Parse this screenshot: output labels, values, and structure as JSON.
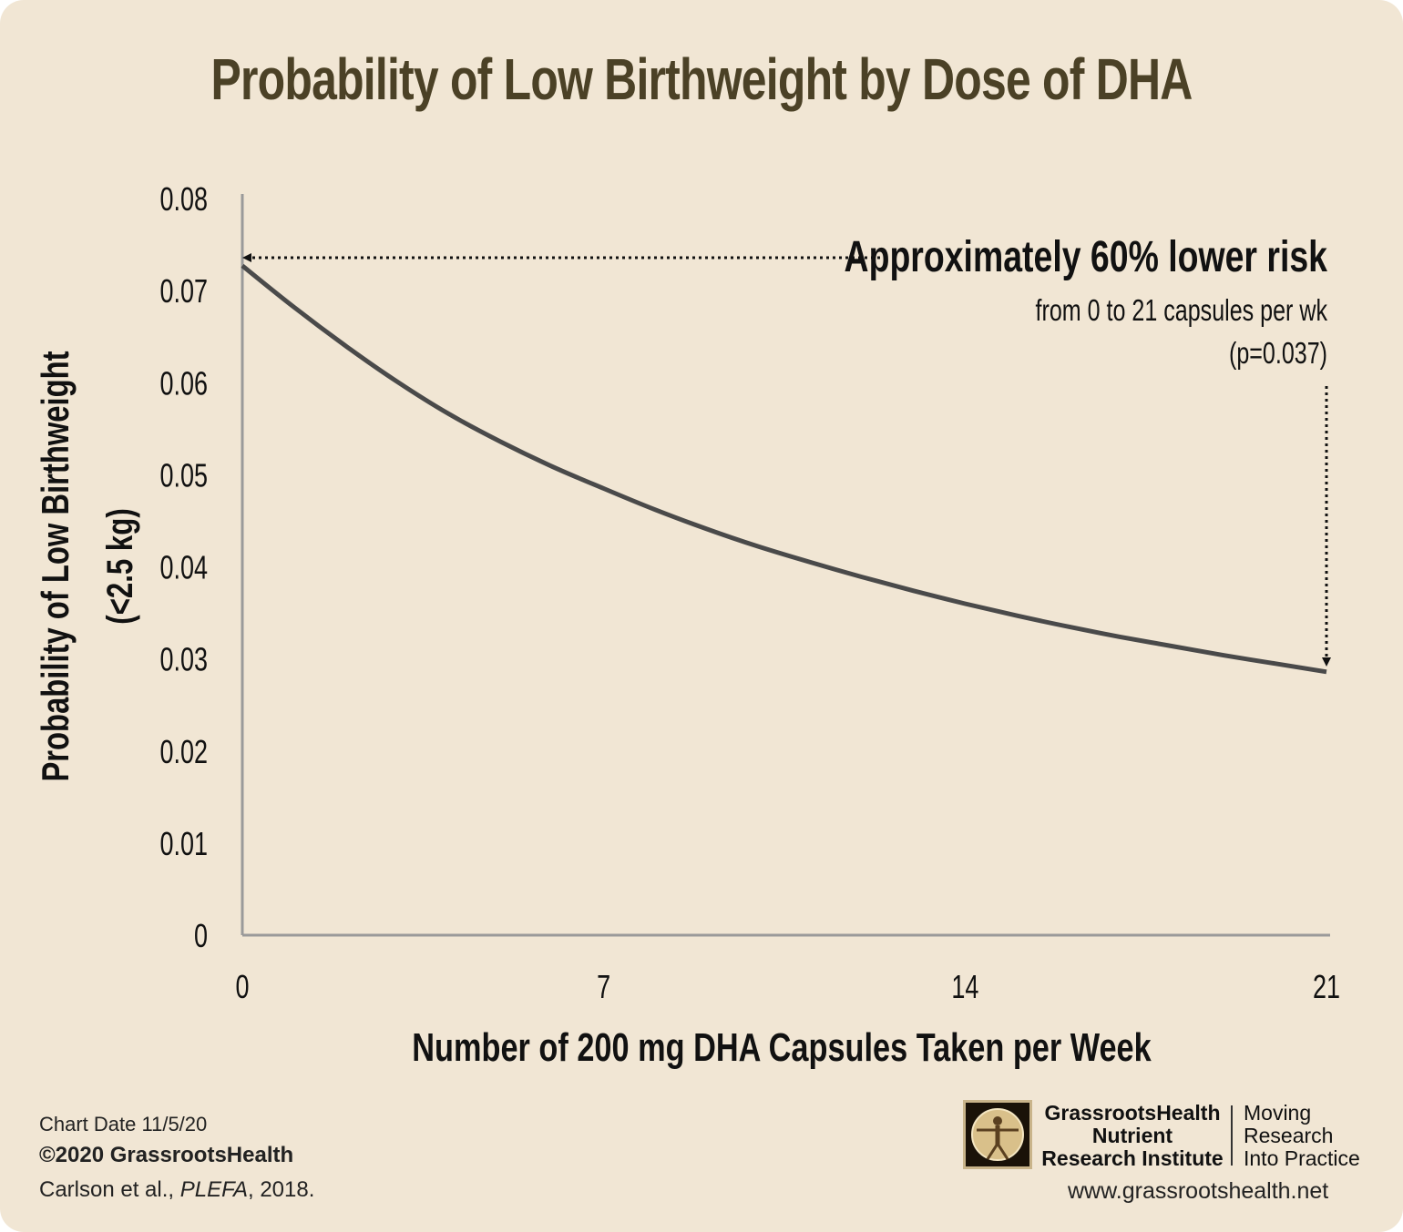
{
  "title": "Probability of Low Birthweight by Dose of DHA",
  "chart_data": {
    "type": "line",
    "title": "Probability of Low Birthweight by Dose of DHA",
    "xlabel": "Number of 200 mg DHA Capsules Taken per Week",
    "ylabel_line1": "Probability of Low Birthweight",
    "ylabel_line2": "(<2.5 kg)",
    "xlim": [
      0,
      21
    ],
    "ylim": [
      0,
      0.08
    ],
    "x_ticks": [
      "0",
      "7",
      "14",
      "21"
    ],
    "y_ticks": [
      "0",
      "0.01",
      "0.02",
      "0.03",
      "0.04",
      "0.05",
      "0.06",
      "0.07",
      "0.08"
    ],
    "grid": false,
    "series": [
      {
        "x": [
          0,
          1,
          2,
          3,
          4,
          5,
          6,
          7,
          8,
          9,
          10,
          11,
          12,
          13,
          14,
          15,
          16,
          17,
          18,
          19,
          20,
          21
        ],
        "y": [
          0.0727,
          0.0682,
          0.064,
          0.0601,
          0.0566,
          0.0536,
          0.0509,
          0.0485,
          0.0462,
          0.0441,
          0.0422,
          0.0405,
          0.0389,
          0.0374,
          0.036,
          0.0347,
          0.0335,
          0.0324,
          0.0314,
          0.0304,
          0.0295,
          0.0286
        ]
      }
    ],
    "annotations": {
      "headline": "Approximately 60% lower risk",
      "detail": "from 0 to 21 capsules per wk",
      "pvalue": "(p=0.037)"
    },
    "colors": {
      "line": "#4a4a4a",
      "axis": "#9a9a9a",
      "title": "#4b4126",
      "background": "#f1e6d4"
    }
  },
  "footer": {
    "chart_date": "Chart Date 11/5/20",
    "copyright": "©2020 GrassrootsHealth",
    "citation_authors": "Carlson et al., ",
    "citation_journal": "PLEFA",
    "citation_year": ", 2018.",
    "logo_name_line1": "GrassrootsHealth",
    "logo_name_line2": "Nutrient",
    "logo_name_line3": "Research Institute",
    "tagline_line1": "Moving",
    "tagline_line2": "Research",
    "tagline_line3": "Into Practice",
    "website": "www.grassrootshealth.net"
  }
}
